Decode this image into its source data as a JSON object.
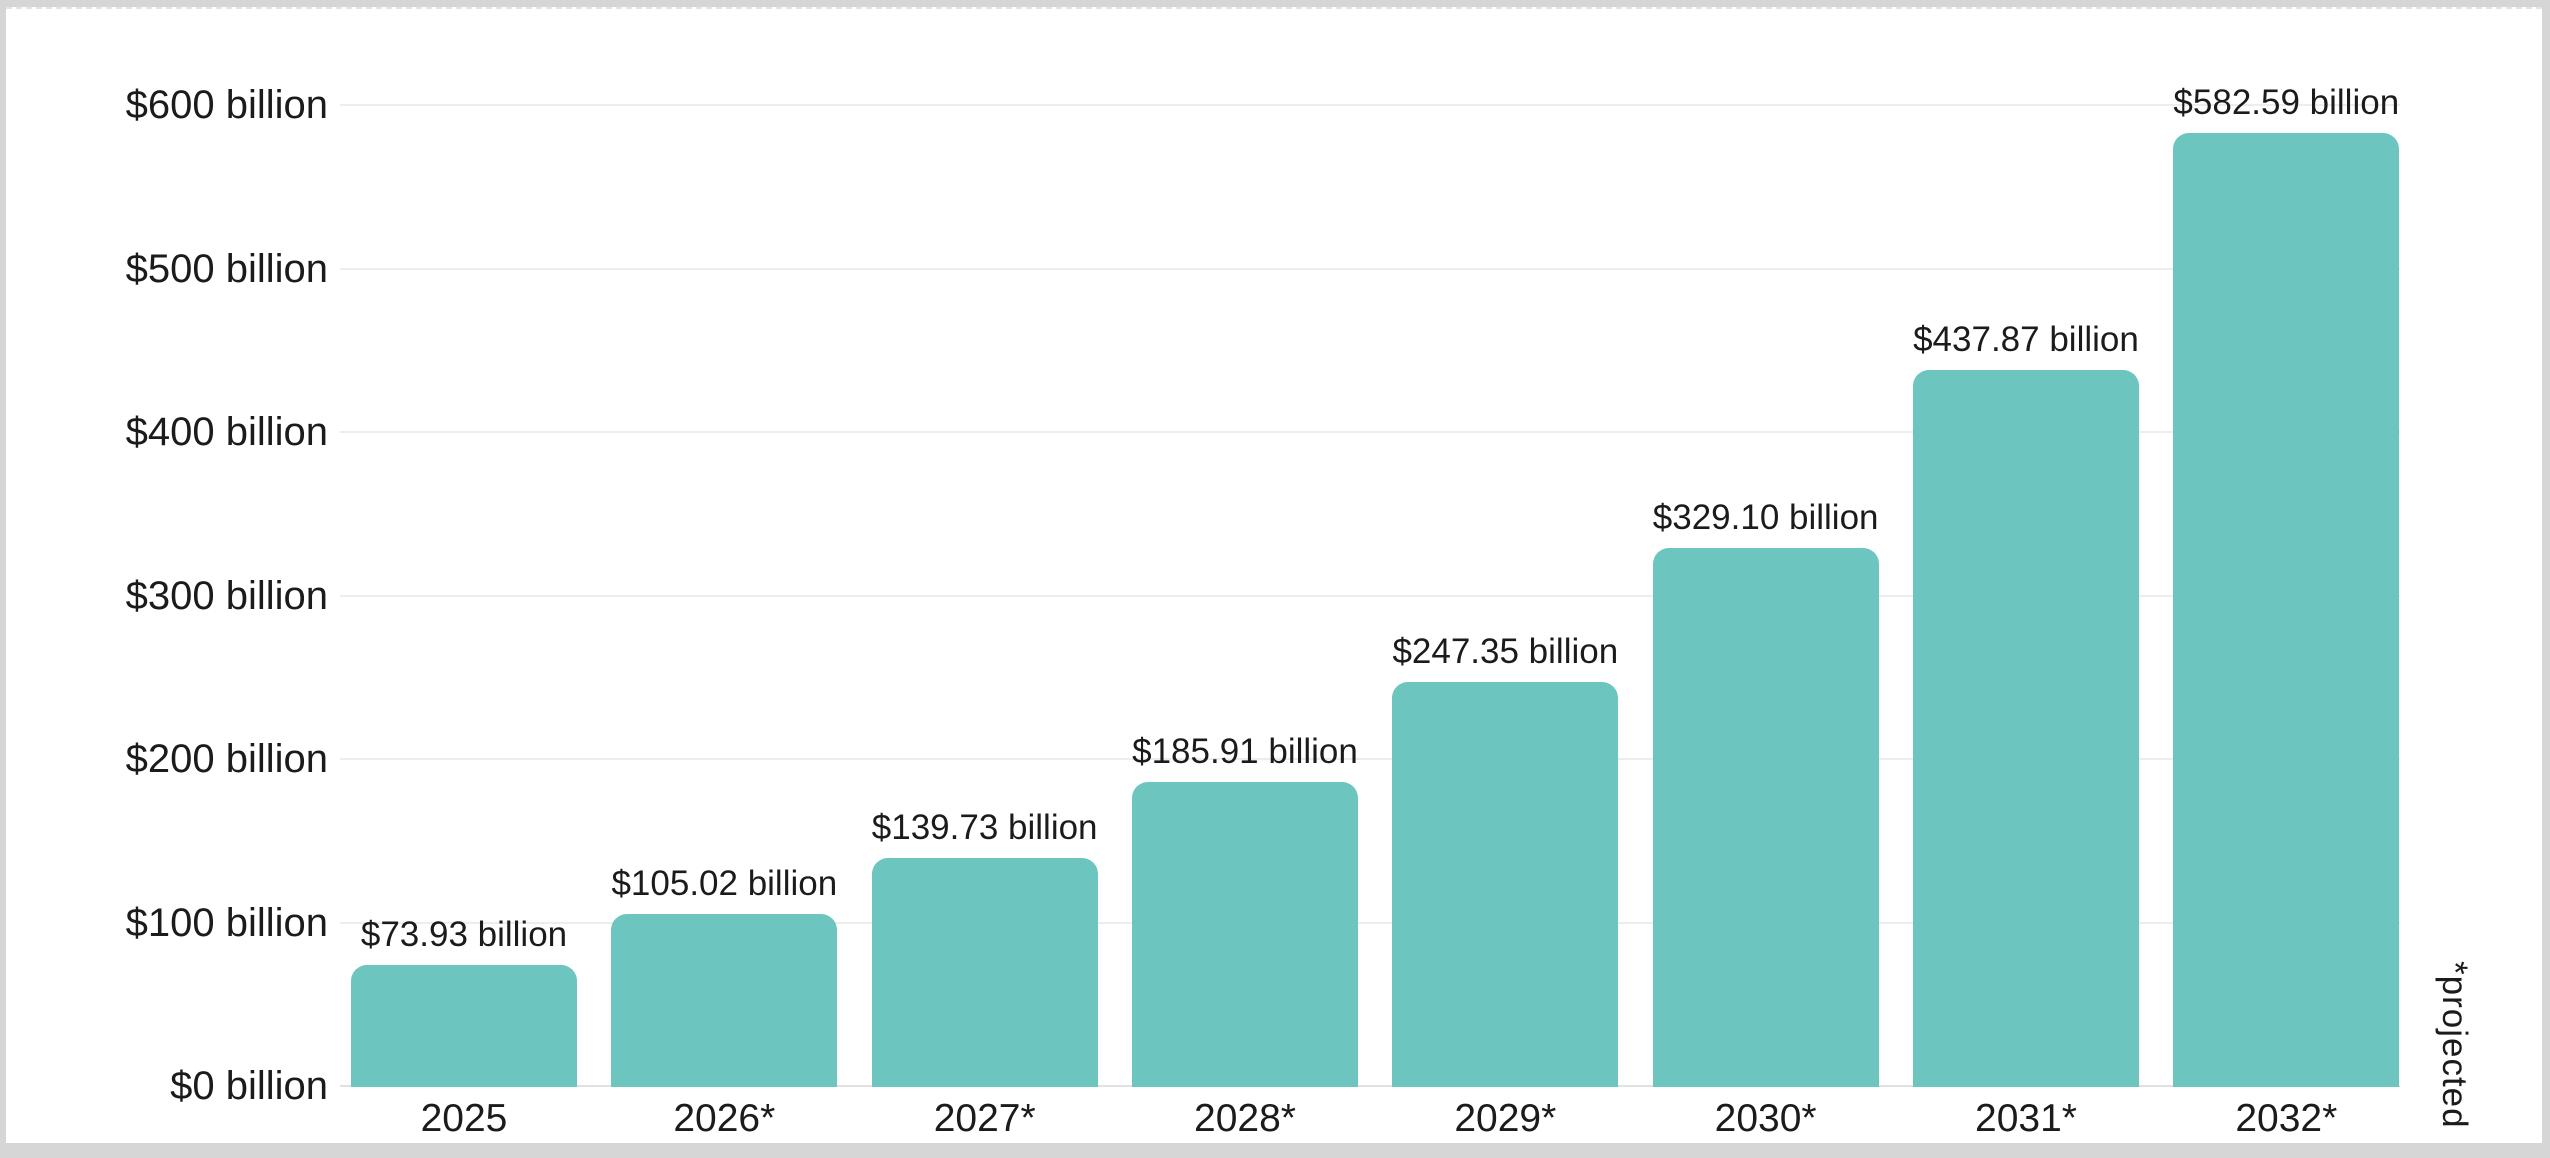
{
  "chart_data": {
    "type": "bar",
    "title": "",
    "categories": [
      "2025",
      "2026*",
      "2027*",
      "2028*",
      "2029*",
      "2030*",
      "2031*",
      "2032*"
    ],
    "values": [
      73.93,
      105.02,
      139.73,
      185.91,
      247.35,
      329.1,
      437.87,
      582.59
    ],
    "bar_labels": [
      "$73.93 billion",
      "$105.02 billion",
      "$139.73 billion",
      "$185.91 billion",
      "$247.35 billion",
      "$329.10 billion",
      "$437.87 billion",
      "$582.59 billion"
    ],
    "y_tick_values": [
      0,
      100,
      200,
      300,
      400,
      500,
      600
    ],
    "y_tick_labels": [
      "$0 billion",
      "$100 billion",
      "$200 billion",
      "$300 billion",
      "$400 billion",
      "$500 billion",
      "$600 billion"
    ],
    "ylim": [
      0,
      600
    ],
    "xlabel": "",
    "ylabel": "",
    "footnote": "*projected",
    "grid": "horizontal",
    "legend_position": "none",
    "bar_color": "#6cc5be",
    "text_color": "#1b1b1b",
    "gridline_color": "#ededed",
    "baseline_color": "#e1e1e1",
    "page_border_color": "#d6d6d6"
  }
}
